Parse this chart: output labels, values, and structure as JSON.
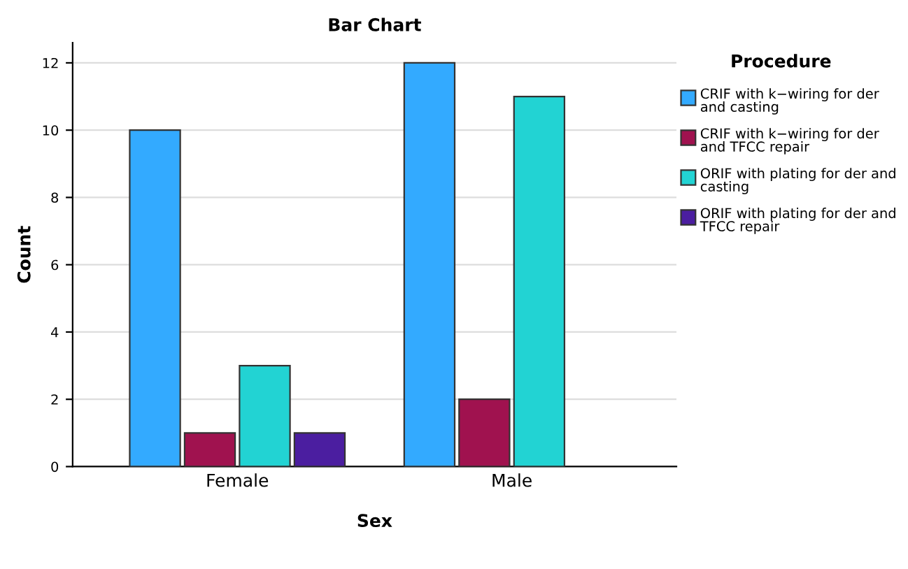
{
  "chart_data": {
    "type": "bar",
    "title": "Bar Chart",
    "xlabel": "Sex",
    "ylabel": "Count",
    "legend_title": "Procedure",
    "categories": [
      "Female",
      "Male"
    ],
    "series": [
      {
        "name": "CRIF with k−wiring for der and casting",
        "color": "#33aaff",
        "values": [
          10,
          12
        ]
      },
      {
        "name": "CRIF with k−wiring for der and TFCC repair",
        "color": "#a0124f",
        "values": [
          1,
          2
        ]
      },
      {
        "name": "ORIF with plating for der and casting",
        "color": "#22d3d3",
        "values": [
          3,
          11
        ]
      },
      {
        "name": "ORIF with plating for der and TFCC repair",
        "color": "#4b1ea0",
        "values": [
          1,
          null
        ]
      }
    ],
    "ylim": [
      0,
      12.6
    ],
    "yticks": [
      0,
      2,
      4,
      6,
      8,
      10,
      12
    ],
    "grid": "y",
    "legend": "right"
  }
}
